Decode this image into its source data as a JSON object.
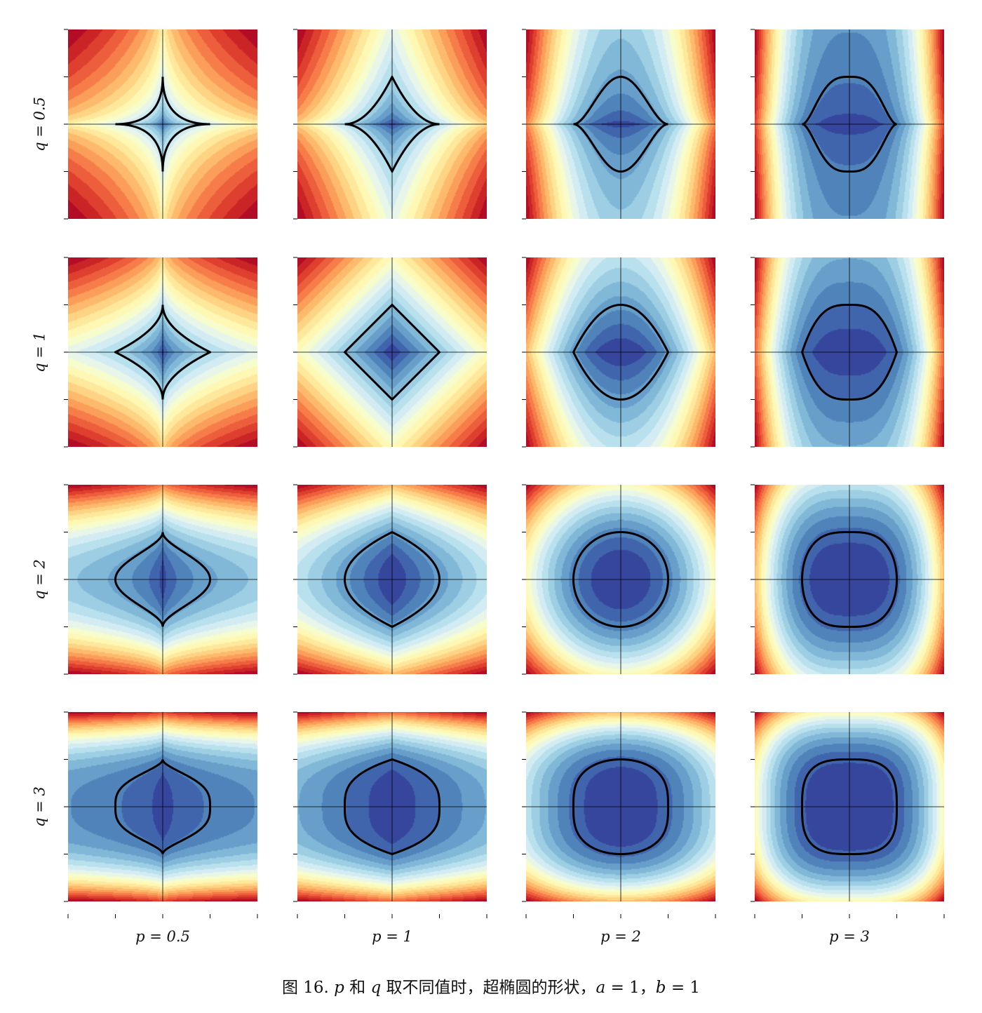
{
  "chart_data": {
    "type": "heatmap",
    "description_of_grid": "4x4 filled contour plots of |x/a|^p + |y/b|^q with the superellipse contour (level 1) drawn in black",
    "p_values": [
      0.5,
      1,
      2,
      3
    ],
    "q_values": [
      0.5,
      1,
      2,
      3
    ],
    "a": 1,
    "b": 1,
    "xlim": [
      -2,
      2
    ],
    "ylim": [
      -2,
      2
    ],
    "xticks": [
      -2,
      -1,
      0,
      1,
      2
    ],
    "yticks": [
      -2,
      -1,
      0,
      1,
      2
    ],
    "contour_level": 1,
    "colormap": "RdYlBu_r",
    "col_labels": [
      "p = 0.5",
      "p = 1",
      "p = 2",
      "p = 3"
    ],
    "row_labels": [
      "q = 0.5",
      "q = 1",
      "q = 2",
      "q = 3"
    ],
    "caption": {
      "prefix": "图 16. ",
      "p": "p",
      "and": " 和 ",
      "q": "q",
      "rest": " 取不同值时，超椭圆的形状，",
      "a_eq": "a",
      "a_val": " = 1，",
      "b_eq": "b",
      "b_val": " = 1"
    }
  },
  "colors": {
    "contour_line": "#000000",
    "axis_line": "#000000",
    "cmap_stops": [
      "#313695",
      "#4575b4",
      "#74add1",
      "#abd9e9",
      "#e0f3f8",
      "#ffffbf",
      "#fee090",
      "#fdae61",
      "#f46d43",
      "#d73027",
      "#a50026"
    ]
  }
}
